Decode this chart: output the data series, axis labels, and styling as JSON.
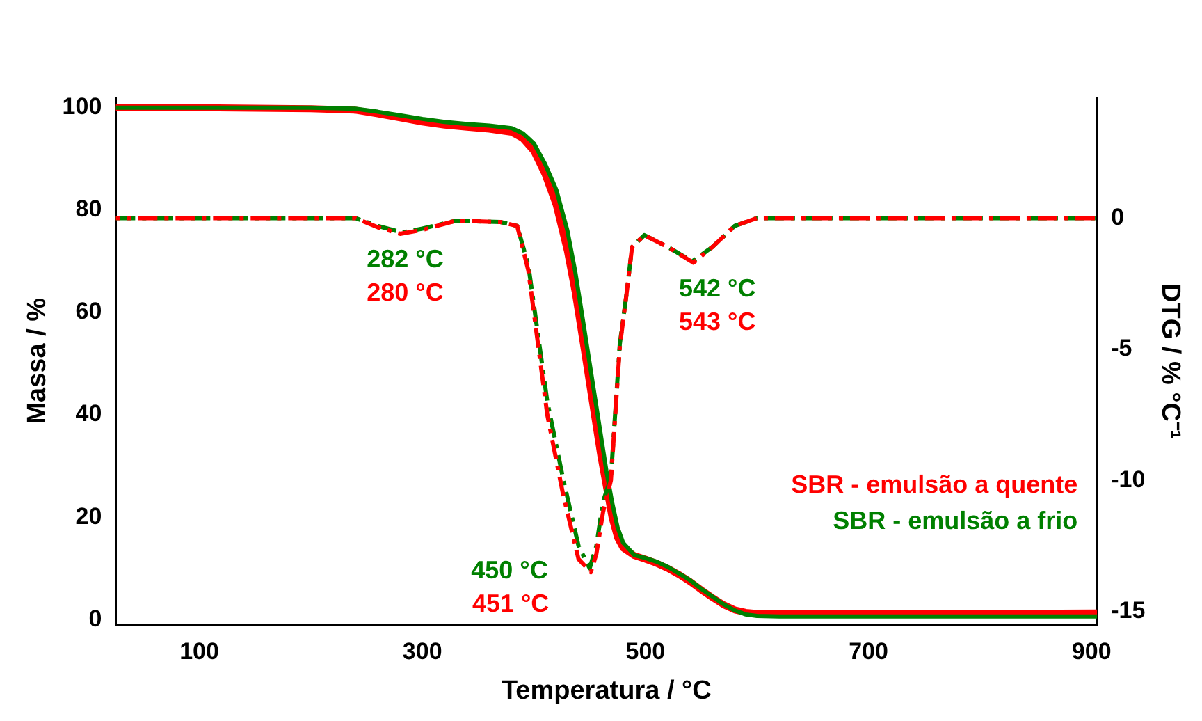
{
  "chart_data": {
    "type": "line",
    "xlabel": "Temperatura / °C",
    "ylabel": "Massa / %",
    "y2label": "DTG / % °C⁻¹",
    "xlim": [
      25,
      905
    ],
    "xticks": [
      100,
      300,
      500,
      700,
      900
    ],
    "ylim": [
      -1,
      102
    ],
    "yticks": [
      0,
      20,
      40,
      60,
      80,
      100
    ],
    "y2lim": [
      -15.5,
      4.6
    ],
    "y2ticks": [
      -15,
      -10,
      -5,
      0
    ],
    "grid": false,
    "legend": "bottom right",
    "marker": "none",
    "series": [
      {
        "name": "SBR - emulsão a quente",
        "color": "#ff0000",
        "line_style": "solid",
        "x": [
          25,
          100,
          200,
          240,
          260,
          280,
          300,
          320,
          340,
          360,
          380,
          390,
          400,
          410,
          420,
          430,
          437,
          445,
          450,
          455,
          460,
          465,
          470,
          475,
          480,
          490,
          500,
          510,
          520,
          530,
          540,
          550,
          560,
          570,
          580,
          590,
          600,
          620,
          700,
          800,
          905
        ],
        "values": [
          100,
          100,
          99.8,
          99.5,
          98.8,
          98,
          97.2,
          96.6,
          96.2,
          95.8,
          95.2,
          94,
          91.5,
          87,
          81,
          72,
          64,
          53,
          46,
          39,
          32,
          26,
          20,
          16,
          14,
          12.5,
          11.8,
          11,
          10,
          8.8,
          7.4,
          5.8,
          4.3,
          2.9,
          1.9,
          1.4,
          1.2,
          1.2,
          1.2,
          1.2,
          1.3
        ]
      },
      {
        "name": "SBR - emulsão a frio",
        "color": "#008000",
        "line_style": "solid",
        "x": [
          25,
          100,
          200,
          240,
          260,
          280,
          300,
          320,
          340,
          360,
          380,
          390,
          400,
          410,
          420,
          430,
          437,
          445,
          450,
          455,
          460,
          465,
          470,
          475,
          480,
          490,
          500,
          510,
          520,
          530,
          540,
          550,
          560,
          570,
          580,
          590,
          600,
          620,
          700,
          800,
          905
        ],
        "values": [
          100,
          100,
          100,
          99.8,
          99.2,
          98.5,
          97.8,
          97.2,
          96.8,
          96.5,
          96,
          95,
          93,
          89,
          84,
          76,
          68,
          57,
          50,
          43,
          36,
          29,
          23,
          18,
          15,
          12.6,
          12,
          11.3,
          10.3,
          9,
          7.7,
          6,
          4.5,
          3,
          1.8,
          1,
          0.7,
          0.6,
          0.6,
          0.6,
          0.6
        ]
      },
      {
        "color": "#008000",
        "axis": "y2",
        "line_style": "dashed",
        "x": [
          25,
          100,
          200,
          240,
          260,
          282,
          300,
          330,
          370,
          385,
          395,
          412,
          426,
          440,
          450,
          456,
          462,
          469,
          477,
          483,
          488,
          499,
          520,
          542,
          560,
          580,
          600,
          700,
          800,
          905
        ],
        "values": [
          0,
          0,
          0,
          0,
          -0.3,
          -0.55,
          -0.4,
          -0.1,
          -0.15,
          -0.3,
          -1.8,
          -7,
          -9.9,
          -12.5,
          -13.35,
          -12.5,
          -10.8,
          -9.9,
          -4.8,
          -2.9,
          -1.1,
          -0.65,
          -1.1,
          -1.65,
          -1.1,
          -0.3,
          0,
          0,
          0,
          0
        ]
      },
      {
        "color": "#ff0000",
        "axis": "y2",
        "line_style": "dashed",
        "x": [
          25,
          100,
          200,
          240,
          260,
          280,
          300,
          330,
          370,
          385,
          395,
          412,
          426,
          440,
          451,
          456,
          462,
          469,
          477,
          483,
          488,
          499,
          520,
          543,
          560,
          580,
          600,
          700,
          800,
          905
        ],
        "values": [
          0,
          0,
          0,
          0,
          -0.35,
          -0.6,
          -0.45,
          -0.1,
          -0.15,
          -0.3,
          -2,
          -7.5,
          -10.5,
          -13,
          -13.5,
          -12.8,
          -11.2,
          -10,
          -4.9,
          -2.9,
          -1.1,
          -0.65,
          -1.1,
          -1.7,
          -1.1,
          -0.3,
          0,
          0,
          0,
          0
        ]
      }
    ],
    "annotations": [
      "282 °C",
      "280 °C",
      "450 °C",
      "451 °C",
      "542 °C",
      "543 °C"
    ]
  }
}
